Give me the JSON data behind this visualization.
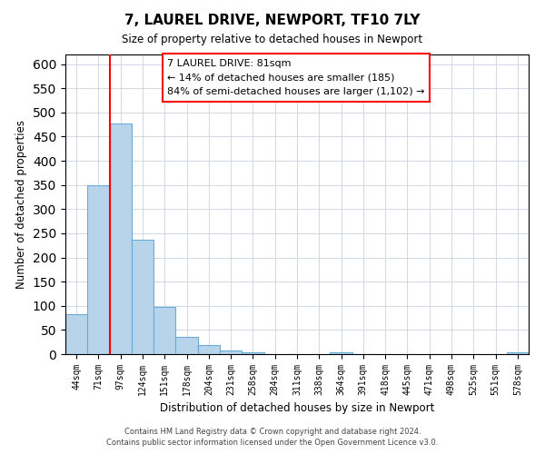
{
  "title": "7, LAUREL DRIVE, NEWPORT, TF10 7LY",
  "subtitle": "Size of property relative to detached houses in Newport",
  "xlabel": "Distribution of detached houses by size in Newport",
  "ylabel": "Number of detached properties",
  "bar_labels": [
    "44sqm",
    "71sqm",
    "97sqm",
    "124sqm",
    "151sqm",
    "178sqm",
    "204sqm",
    "231sqm",
    "258sqm",
    "284sqm",
    "311sqm",
    "338sqm",
    "364sqm",
    "391sqm",
    "418sqm",
    "445sqm",
    "471sqm",
    "498sqm",
    "525sqm",
    "551sqm",
    "578sqm"
  ],
  "bar_values": [
    83,
    350,
    478,
    236,
    97,
    35,
    18,
    8,
    3,
    0,
    0,
    0,
    3,
    0,
    0,
    0,
    0,
    0,
    0,
    0,
    3
  ],
  "bar_color": "#b8d4ea",
  "bar_edge_color": "#6aaad4",
  "ylim": [
    0,
    620
  ],
  "yticks": [
    0,
    50,
    100,
    150,
    200,
    250,
    300,
    350,
    400,
    450,
    500,
    550,
    600
  ],
  "annotation_title": "7 LAUREL DRIVE: 81sqm",
  "annotation_line1": "← 14% of detached houses are smaller (185)",
  "annotation_line2": "84% of semi-detached houses are larger (1,102) →",
  "footnote1": "Contains HM Land Registry data © Crown copyright and database right 2024.",
  "footnote2": "Contains public sector information licensed under the Open Government Licence v3.0.",
  "background_color": "#ffffff",
  "grid_color": "#d0d8e8"
}
